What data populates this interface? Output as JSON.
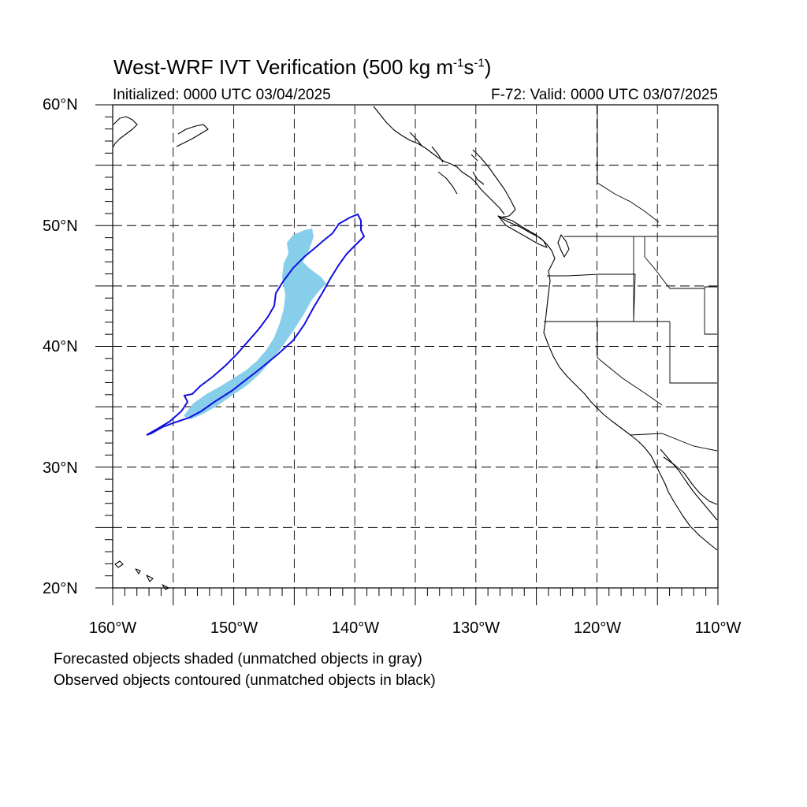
{
  "title": {
    "main": "West-WRF IVT Verification (500 kg m",
    "sup1": "-1",
    "mid": "s",
    "sup2": "-1",
    "end": ")"
  },
  "subtitle": {
    "initialized": "Initialized: 0000 UTC 03/04/2025",
    "valid": "F-72: Valid: 0000 UTC 03/07/2025"
  },
  "latitude_labels": [
    "60°N",
    "50°N",
    "40°N",
    "30°N",
    "20°N"
  ],
  "longitude_labels": [
    "160°W",
    "150°W",
    "140°W",
    "130°W",
    "120°W",
    "110°W"
  ],
  "notes": [
    "Forecasted objects shaded (unmatched objects in gray)",
    "Observed objects contoured (unmatched objects in black)"
  ],
  "map": {
    "lon_range": [
      -160,
      -110
    ],
    "lat_range": [
      20,
      60
    ],
    "grid_interval_deg": 5,
    "grid_style": "dashed",
    "colors": {
      "forecast_fill": "#87ceeb",
      "observed_contour": "#1010e0",
      "coastline": "#000000"
    }
  }
}
